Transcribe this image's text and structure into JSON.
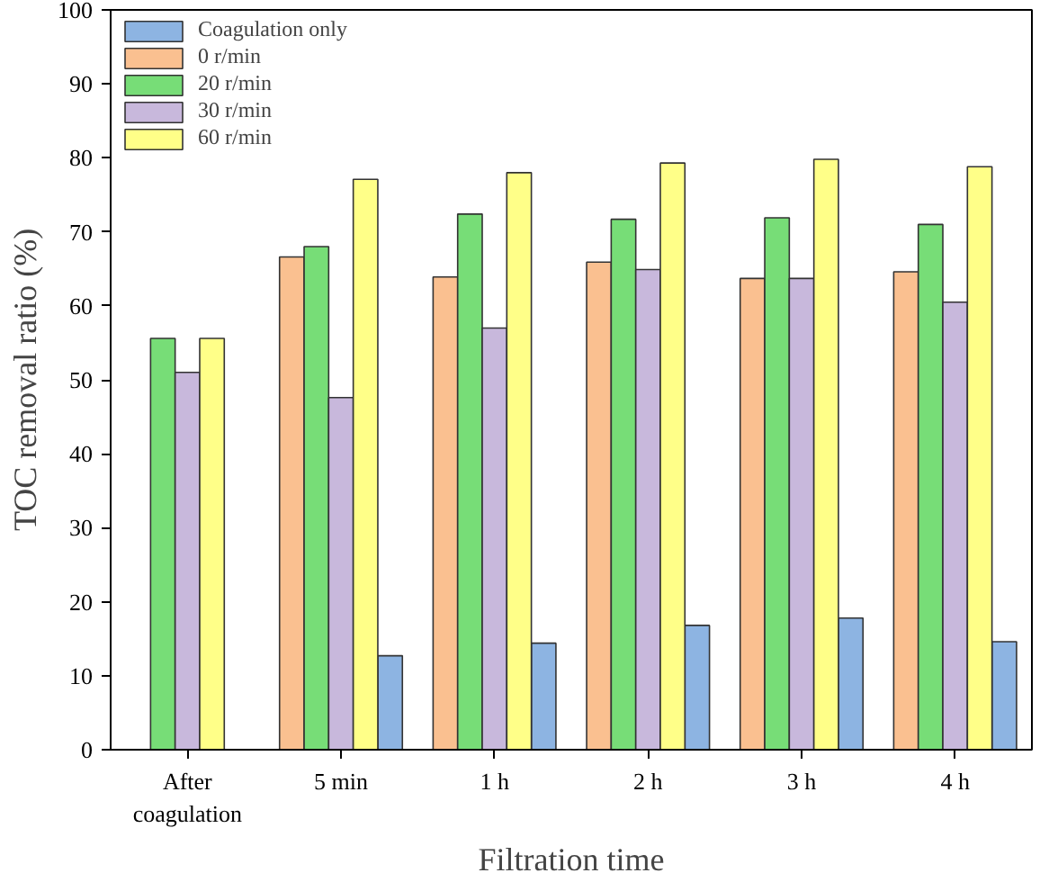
{
  "chart_data": {
    "type": "bar",
    "xlabel": "Filtration time",
    "ylabel": "TOC removal ratio (%)",
    "categories": [
      "After coagulation",
      "5 min",
      "1 h",
      "2 h",
      "3 h",
      "4 h"
    ],
    "series": [
      {
        "name": "Coagulation only",
        "color": "#8db4e2",
        "values": [
          null,
          12.7,
          14.4,
          16.8,
          17.8,
          14.6
        ]
      },
      {
        "name": "0 r/min",
        "color": "#fac090",
        "values": [
          null,
          66.6,
          63.9,
          65.9,
          63.7,
          64.6
        ]
      },
      {
        "name": "20 r/min",
        "color": "#77dd77",
        "values": [
          55.6,
          68,
          72.4,
          71.7,
          71.9,
          71
        ]
      },
      {
        "name": "30 r/min",
        "color": "#c8b8dc",
        "values": [
          51,
          47.6,
          57,
          64.9,
          63.7,
          60.5
        ]
      },
      {
        "name": "60 r/min",
        "color": "#ffff88",
        "values": [
          55.6,
          77.1,
          78,
          79.3,
          79.8,
          78.8
        ]
      }
    ],
    "ylim": [
      0,
      100
    ],
    "yticks": [
      0,
      10,
      20,
      30,
      40,
      50,
      60,
      70,
      80,
      90,
      100
    ],
    "grid": false,
    "legend": "top left"
  }
}
